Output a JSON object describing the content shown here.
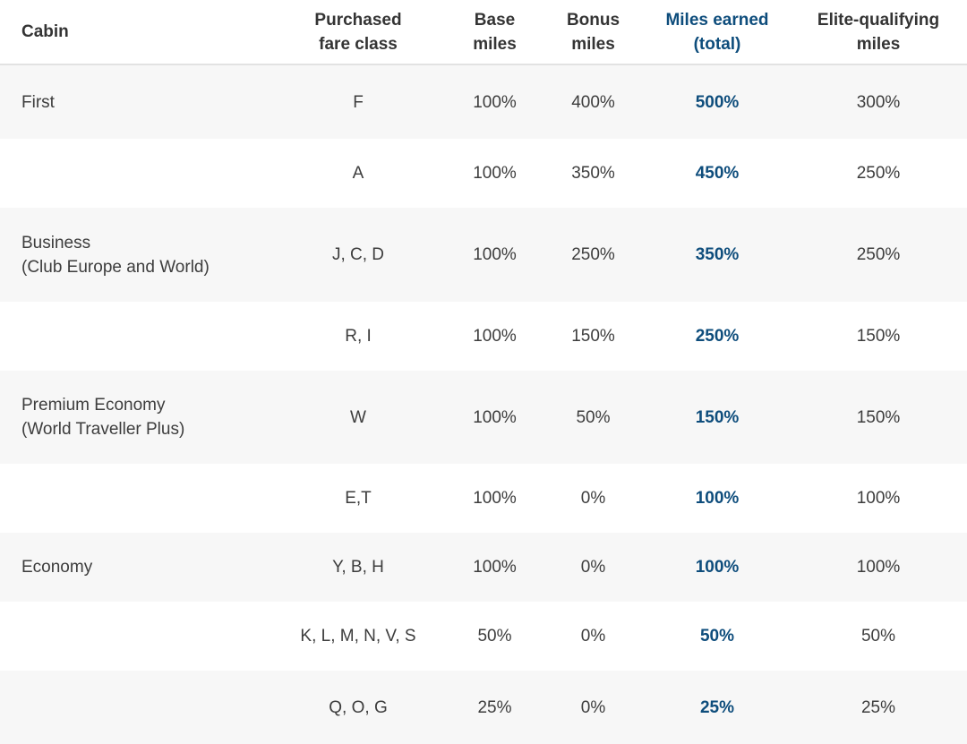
{
  "colors": {
    "accent_blue": "#0e4d7c",
    "header_text": "#343434",
    "body_text": "#3d3d3d",
    "shaded_row_bg": "#f7f7f7",
    "header_divider": "#e2e2e2"
  },
  "chart_data": {
    "type": "table",
    "columns": [
      "Cabin",
      "Purchased fare class",
      "Base miles",
      "Bonus miles",
      "Miles earned (total)",
      "Elite-qualifying miles"
    ],
    "header_labels": [
      "Cabin",
      "Purchased\nfare class",
      "Base\nmiles",
      "Bonus\nmiles",
      "Miles earned\n(total)",
      "Elite-qualifying\nmiles"
    ],
    "rows": [
      {
        "cabin": "First",
        "fare_class": "F",
        "base_miles": "100%",
        "bonus_miles": "400%",
        "miles_earned_total": "500%",
        "elite_qualifying_miles": "300%"
      },
      {
        "cabin": "",
        "fare_class": "A",
        "base_miles": "100%",
        "bonus_miles": "350%",
        "miles_earned_total": "450%",
        "elite_qualifying_miles": "250%"
      },
      {
        "cabin": "Business\n(Club Europe and World)",
        "fare_class": "J, C, D",
        "base_miles": "100%",
        "bonus_miles": "250%",
        "miles_earned_total": "350%",
        "elite_qualifying_miles": "250%"
      },
      {
        "cabin": "",
        "fare_class": "R, I",
        "base_miles": "100%",
        "bonus_miles": "150%",
        "miles_earned_total": "250%",
        "elite_qualifying_miles": "150%"
      },
      {
        "cabin": "Premium Economy\n(World Traveller Plus)",
        "fare_class": "W",
        "base_miles": "100%",
        "bonus_miles": "50%",
        "miles_earned_total": "150%",
        "elite_qualifying_miles": "150%"
      },
      {
        "cabin": "",
        "fare_class": "E,T",
        "base_miles": "100%",
        "bonus_miles": "0%",
        "miles_earned_total": "100%",
        "elite_qualifying_miles": "100%"
      },
      {
        "cabin": "Economy",
        "fare_class": "Y, B, H",
        "base_miles": "100%",
        "bonus_miles": "0%",
        "miles_earned_total": "100%",
        "elite_qualifying_miles": "100%"
      },
      {
        "cabin": "",
        "fare_class": "K, L, M, N, V, S",
        "base_miles": "50%",
        "bonus_miles": "0%",
        "miles_earned_total": "50%",
        "elite_qualifying_miles": "50%"
      },
      {
        "cabin": "",
        "fare_class": "Q, O, G",
        "base_miles": "25%",
        "bonus_miles": "0%",
        "miles_earned_total": "25%",
        "elite_qualifying_miles": "25%"
      }
    ]
  }
}
